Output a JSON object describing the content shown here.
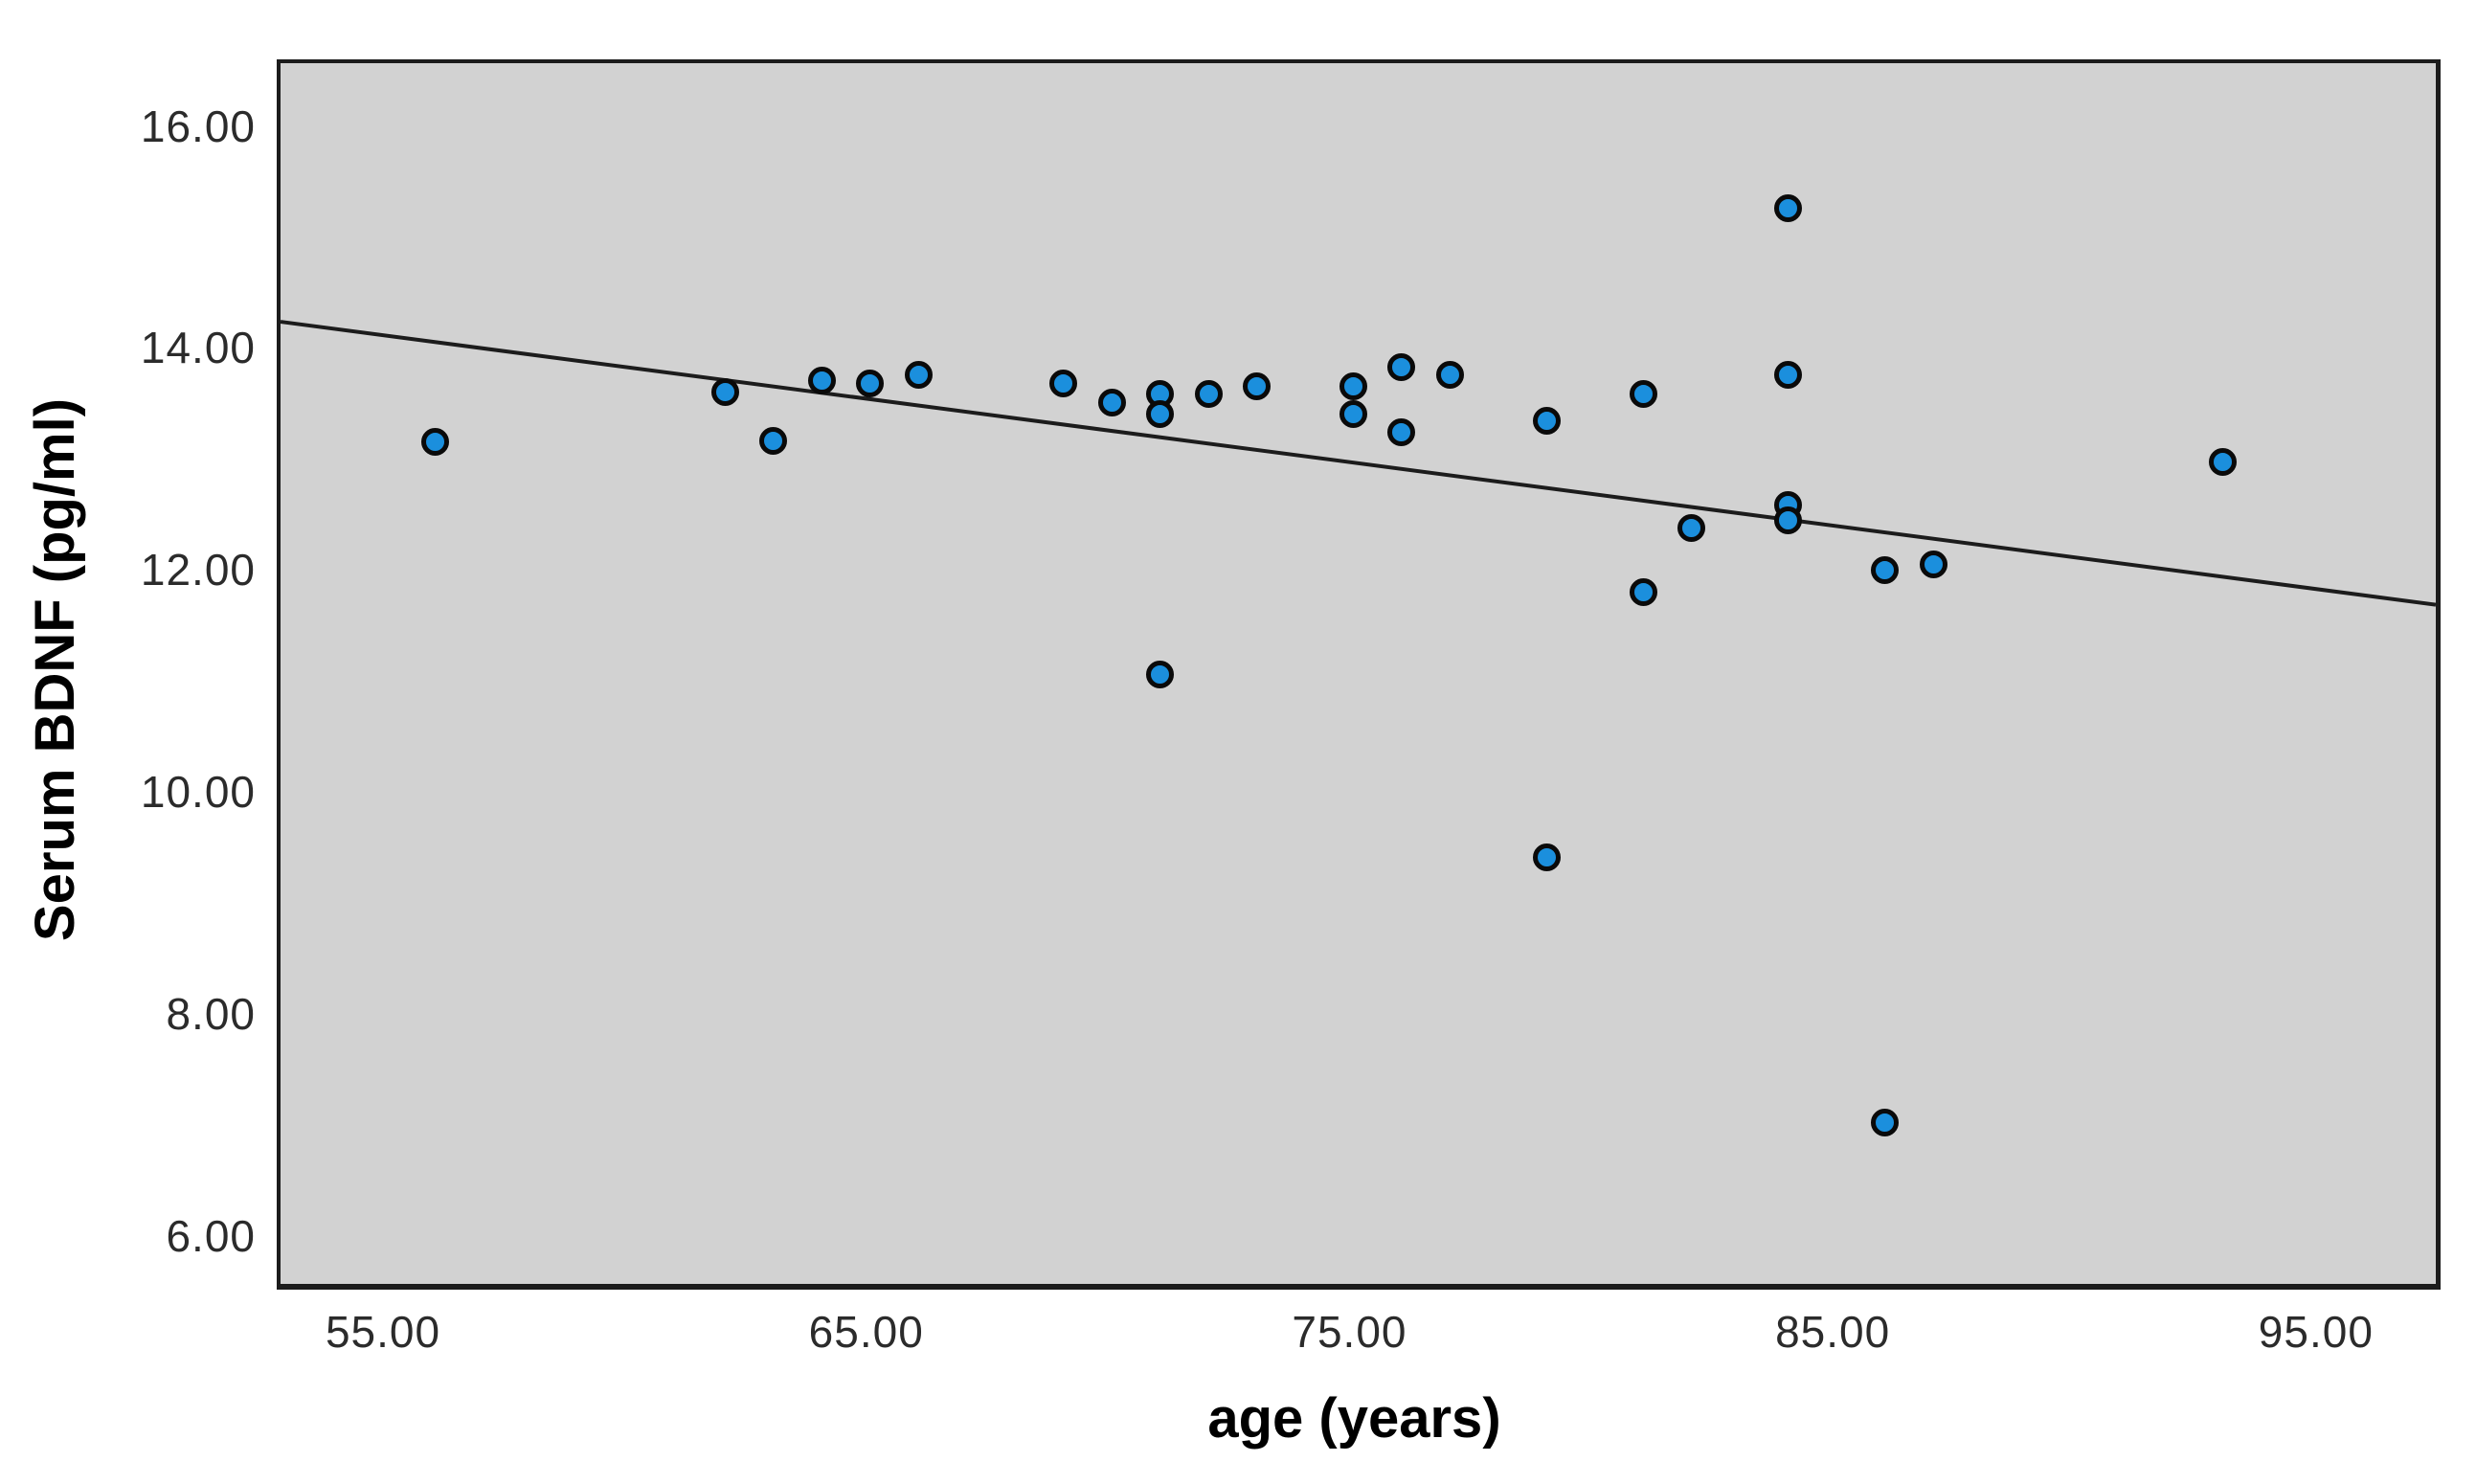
{
  "chart_data": {
    "type": "scatter",
    "title": "",
    "xlabel": "age (years)",
    "ylabel": "Serum BDNF (pg/ml)",
    "xlim": [
      52.8,
      97.4
    ],
    "ylim": [
      5.6,
      16.6
    ],
    "x_ticks": [
      55,
      65,
      75,
      85,
      95
    ],
    "x_tick_labels": [
      "55.00",
      "65.00",
      "75.00",
      "85.00",
      "95.00"
    ],
    "y_ticks": [
      6,
      8,
      10,
      12,
      14,
      16
    ],
    "y_tick_labels": [
      "6.00",
      "8.00",
      "10.00",
      "12.00",
      "14.00",
      "16.00"
    ],
    "grid": false,
    "legend": false,
    "plot_background": "#d2d2d2",
    "frame_color": "#1c1c1c",
    "marker_fill": "#1b8fdd",
    "marker_edge": "#0a0a0a",
    "fit_line": {
      "x1": 52.8,
      "y1": 14.27,
      "x2": 97.4,
      "y2": 11.72,
      "color": "#1c1c1c"
    },
    "points": [
      [
        56,
        13.19
      ],
      [
        62,
        13.64
      ],
      [
        63,
        13.2
      ],
      [
        64,
        13.74
      ],
      [
        65,
        13.71
      ],
      [
        66,
        13.79
      ],
      [
        69,
        13.71
      ],
      [
        70,
        13.54
      ],
      [
        71,
        13.62
      ],
      [
        71,
        13.44
      ],
      [
        71,
        11.09
      ],
      [
        72,
        13.62
      ],
      [
        73,
        13.69
      ],
      [
        75,
        13.69
      ],
      [
        75,
        13.44
      ],
      [
        76,
        13.86
      ],
      [
        76,
        13.27
      ],
      [
        77,
        13.79
      ],
      [
        79,
        13.38
      ],
      [
        79,
        9.44
      ],
      [
        81,
        13.62
      ],
      [
        81,
        11.83
      ],
      [
        82,
        12.41
      ],
      [
        84,
        15.29
      ],
      [
        84,
        13.79
      ],
      [
        84,
        12.62
      ],
      [
        84,
        12.48
      ],
      [
        86,
        12.03
      ],
      [
        86,
        7.05
      ],
      [
        87,
        12.08
      ],
      [
        93,
        13.01
      ]
    ]
  }
}
